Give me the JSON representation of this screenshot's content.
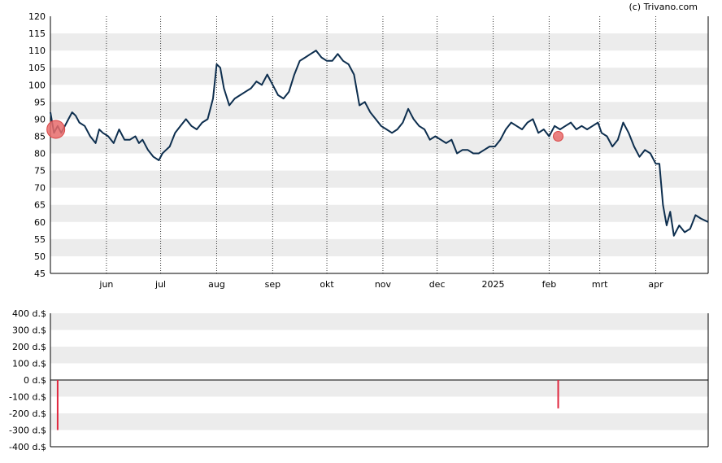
{
  "credit": "(c) Trivano.com",
  "colors": {
    "price_line": "#0d2e4e",
    "band": "#ececec",
    "marker_fill": "#e86b6b",
    "marker_stroke": "#d94545",
    "bar": "#e0263d",
    "axis": "#000000",
    "month_line": "#333333"
  },
  "chart_data": [
    {
      "type": "line",
      "name": "price",
      "ylim": [
        45,
        120
      ],
      "y_ticks": [
        45,
        50,
        55,
        60,
        65,
        70,
        75,
        80,
        85,
        90,
        95,
        100,
        105,
        110,
        115,
        120
      ],
      "y_tick_labels": [
        "45",
        "50",
        "55",
        "60",
        "65",
        "70",
        "75",
        "80",
        "85",
        "90",
        "95",
        "100",
        "105",
        "110",
        "115",
        "120"
      ],
      "x_domain": [
        "2024-05-01",
        "2025-04-30"
      ],
      "x_ticks": [
        "2024-06-01",
        "2024-07-01",
        "2024-08-01",
        "2024-09-01",
        "2024-10-01",
        "2024-11-01",
        "2024-12-01",
        "2025-01-01",
        "2025-02-01",
        "2025-03-01",
        "2025-04-01"
      ],
      "x_tick_labels": [
        "jun",
        "jul",
        "aug",
        "sep",
        "okt",
        "nov",
        "dec",
        "2025",
        "feb",
        "mrt",
        "apr"
      ],
      "grid": "horizontal bands, dotted vertical lines at month starts",
      "series": [
        {
          "x": [
            "2024-05-01",
            "2024-05-03",
            "2024-05-05",
            "2024-05-07",
            "2024-05-09",
            "2024-05-11",
            "2024-05-13",
            "2024-05-15",
            "2024-05-17",
            "2024-05-20",
            "2024-05-23",
            "2024-05-26",
            "2024-05-28",
            "2024-05-30",
            "2024-06-02",
            "2024-06-05",
            "2024-06-08",
            "2024-06-11",
            "2024-06-14",
            "2024-06-17",
            "2024-06-19",
            "2024-06-21",
            "2024-06-24",
            "2024-06-27",
            "2024-06-30",
            "2024-07-02",
            "2024-07-04",
            "2024-07-06",
            "2024-07-09",
            "2024-07-12",
            "2024-07-15",
            "2024-07-18",
            "2024-07-21",
            "2024-07-24",
            "2024-07-27",
            "2024-07-30",
            "2024-08-01",
            "2024-08-03",
            "2024-08-05",
            "2024-08-08",
            "2024-08-11",
            "2024-08-14",
            "2024-08-17",
            "2024-08-20",
            "2024-08-23",
            "2024-08-26",
            "2024-08-29",
            "2024-09-01",
            "2024-09-04",
            "2024-09-07",
            "2024-09-10",
            "2024-09-13",
            "2024-09-16",
            "2024-09-19",
            "2024-09-22",
            "2024-09-25",
            "2024-09-28",
            "2024-10-01",
            "2024-10-04",
            "2024-10-07",
            "2024-10-10",
            "2024-10-13",
            "2024-10-16",
            "2024-10-19",
            "2024-10-22",
            "2024-10-25",
            "2024-10-28",
            "2024-10-31",
            "2024-11-03",
            "2024-11-06",
            "2024-11-09",
            "2024-11-12",
            "2024-11-15",
            "2024-11-18",
            "2024-11-21",
            "2024-11-24",
            "2024-11-27",
            "2024-11-30",
            "2024-12-03",
            "2024-12-06",
            "2024-12-09",
            "2024-12-12",
            "2024-12-15",
            "2024-12-18",
            "2024-12-21",
            "2024-12-24",
            "2024-12-27",
            "2024-12-30",
            "2025-01-02",
            "2025-01-05",
            "2025-01-08",
            "2025-01-11",
            "2025-01-14",
            "2025-01-17",
            "2025-01-20",
            "2025-01-23",
            "2025-01-26",
            "2025-01-29",
            "2025-02-01",
            "2025-02-04",
            "2025-02-07",
            "2025-02-10",
            "2025-02-13",
            "2025-02-16",
            "2025-02-19",
            "2025-02-22",
            "2025-02-25",
            "2025-02-28",
            "2025-03-02",
            "2025-03-05",
            "2025-03-08",
            "2025-03-11",
            "2025-03-14",
            "2025-03-17",
            "2025-03-20",
            "2025-03-23",
            "2025-03-26",
            "2025-03-29",
            "2025-04-01",
            "2025-04-03",
            "2025-04-05",
            "2025-04-07",
            "2025-04-09",
            "2025-04-11",
            "2025-04-14",
            "2025-04-17",
            "2025-04-20",
            "2025-04-23",
            "2025-04-26",
            "2025-04-30"
          ],
          "y": [
            92,
            86,
            88,
            86,
            88,
            90,
            92,
            91,
            89,
            88,
            85,
            83,
            87,
            86,
            85,
            83,
            87,
            84,
            84,
            85,
            83,
            84,
            81,
            79,
            78,
            80,
            81,
            82,
            86,
            88,
            90,
            88,
            87,
            89,
            90,
            96,
            106,
            105,
            99,
            94,
            96,
            97,
            98,
            99,
            101,
            100,
            103,
            100,
            97,
            96,
            98,
            103,
            107,
            108,
            109,
            110,
            108,
            107,
            107,
            109,
            107,
            106,
            103,
            94,
            95,
            92,
            90,
            88,
            87,
            86,
            87,
            89,
            93,
            90,
            88,
            87,
            84,
            85,
            84,
            83,
            84,
            80,
            81,
            81,
            80,
            80,
            81,
            82,
            82,
            84,
            87,
            89,
            88,
            87,
            89,
            90,
            86,
            87,
            85,
            88,
            87,
            88,
            89,
            87,
            88,
            87,
            88,
            89,
            86,
            85,
            82,
            84,
            89,
            86,
            82,
            79,
            81,
            80,
            77,
            77,
            65,
            59,
            63,
            56,
            59,
            57,
            58,
            62,
            61,
            60
          ],
          "markers": [
            {
              "x": "2024-05-04",
              "y": 87,
              "size": "large"
            },
            {
              "x": "2025-02-06",
              "y": 85,
              "size": "small"
            }
          ]
        }
      ]
    },
    {
      "type": "bar",
      "name": "dividends",
      "ylim": [
        -400,
        400
      ],
      "y_ticks": [
        -400,
        -300,
        -200,
        -100,
        0,
        100,
        200,
        300,
        400
      ],
      "y_tick_labels": [
        "-400 d.$",
        "-300 d.$",
        "-200 d.$",
        "-100 d.$",
        "0 d.$",
        "100 d.$",
        "200 d.$",
        "300 d.$",
        "400 d.$"
      ],
      "x_domain": [
        "2024-05-01",
        "2025-04-30"
      ],
      "bars": [
        {
          "x": "2024-05-05",
          "value": -300
        },
        {
          "x": "2025-02-06",
          "value": -170
        }
      ]
    }
  ]
}
